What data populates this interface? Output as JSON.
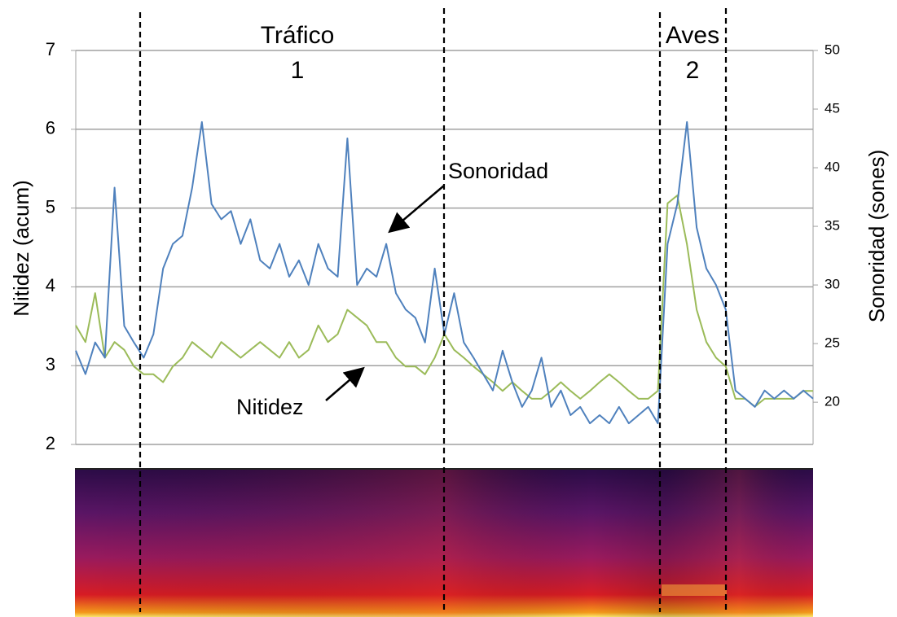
{
  "chart_data": {
    "type": "line",
    "ylabel": "Nitidez (acum)",
    "y2label": "Sonoridad (sones)",
    "ylim": [
      2,
      7
    ],
    "yticks": [
      2,
      3,
      4,
      5,
      6,
      7
    ],
    "y2lim": [
      16.4,
      50
    ],
    "y2ticks": [
      20,
      25,
      30,
      35,
      40,
      45,
      50
    ],
    "grid": true,
    "annotations": [
      {
        "text": "Tráfico"
      },
      {
        "text": "1"
      },
      {
        "text": "Aves"
      },
      {
        "text": "2"
      }
    ],
    "series": [
      {
        "name": "Sonoridad",
        "color": "#4f81bd",
        "axis": "y2",
        "values": [
          24.4,
          22.4,
          25.1,
          23.8,
          38.3,
          26.5,
          25.1,
          23.8,
          25.8,
          31.4,
          33.5,
          34.2,
          38.3,
          43.9,
          36.9,
          35.6,
          36.3,
          33.5,
          35.6,
          32.1,
          31.4,
          33.5,
          30.7,
          32.1,
          30.0,
          33.5,
          31.4,
          30.7,
          42.5,
          30.0,
          31.4,
          30.7,
          33.5,
          29.3,
          27.9,
          27.2,
          25.1,
          31.4,
          25.8,
          29.3,
          25.1,
          23.8,
          22.4,
          21.0,
          24.4,
          21.7,
          19.6,
          21.0,
          23.8,
          19.6,
          21.0,
          18.9,
          19.6,
          18.2,
          18.9,
          18.2,
          19.6,
          18.2,
          18.9,
          19.6,
          18.2,
          33.5,
          36.9,
          43.9,
          34.9,
          31.4,
          30.0,
          27.9,
          21.0,
          20.3,
          19.6,
          21.0,
          20.3,
          21.0,
          20.3,
          21.0,
          20.3
        ]
      },
      {
        "name": "Nitidez",
        "color": "#9bbb59",
        "values": [
          3.51,
          3.3,
          3.92,
          3.1,
          3.3,
          3.2,
          2.99,
          2.89,
          2.89,
          2.79,
          2.99,
          3.1,
          3.3,
          3.2,
          3.1,
          3.3,
          3.2,
          3.1,
          3.2,
          3.3,
          3.2,
          3.1,
          3.3,
          3.1,
          3.2,
          3.51,
          3.3,
          3.4,
          3.71,
          3.61,
          3.51,
          3.3,
          3.3,
          3.1,
          2.99,
          2.99,
          2.89,
          3.1,
          3.4,
          3.2,
          3.1,
          2.99,
          2.89,
          2.79,
          2.68,
          2.79,
          2.68,
          2.58,
          2.58,
          2.68,
          2.79,
          2.68,
          2.58,
          2.68,
          2.79,
          2.89,
          2.79,
          2.68,
          2.58,
          2.58,
          2.68,
          5.06,
          5.16,
          4.54,
          3.71,
          3.3,
          3.1,
          2.99,
          2.58,
          2.58,
          2.48,
          2.58,
          2.58,
          2.58,
          2.58,
          2.68,
          2.68
        ]
      }
    ]
  }
}
